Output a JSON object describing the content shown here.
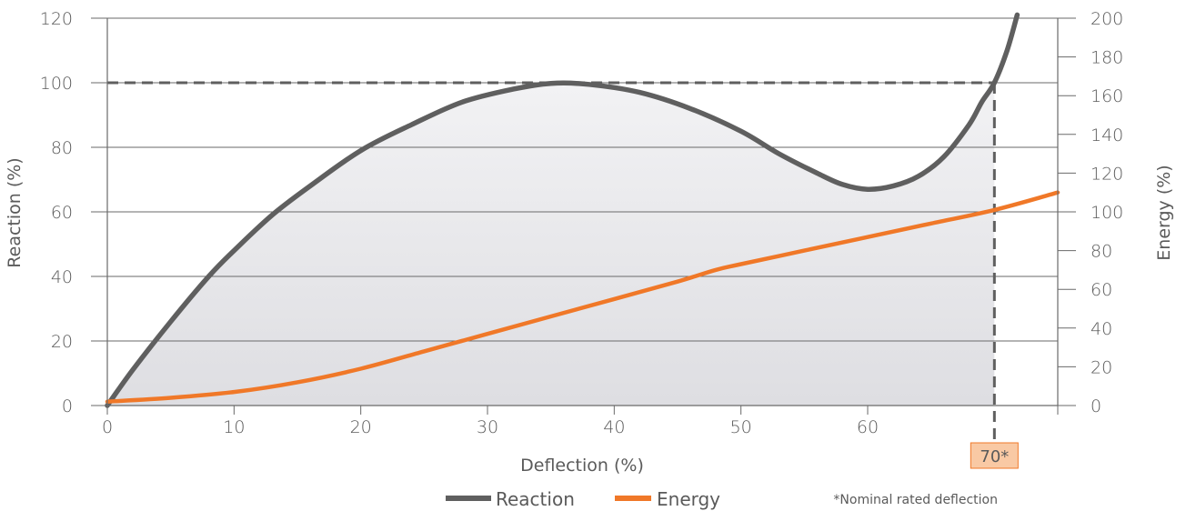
{
  "chart_data": {
    "type": "line",
    "xlabel": "Deflection (%)",
    "ylabel": "Reaction (%)",
    "y2label": "Energy (%)",
    "xlim": [
      0,
      75
    ],
    "ylim": [
      0,
      120
    ],
    "y2lim": [
      0,
      200
    ],
    "x_ticks": [
      0,
      10,
      20,
      30,
      40,
      50,
      60
    ],
    "y_ticks": [
      0,
      20,
      40,
      60,
      80,
      100,
      120
    ],
    "y2_ticks": [
      0,
      20,
      40,
      60,
      80,
      100,
      120,
      140,
      160,
      180,
      200
    ],
    "grid": true,
    "legend_position": "bottom-center",
    "series": [
      {
        "name": "Reaction",
        "color": "#5f5f5f",
        "axis": "left",
        "x": [
          0,
          2,
          5,
          8,
          10,
          13,
          16,
          20,
          24,
          28,
          32,
          35,
          38,
          42,
          46,
          50,
          53,
          56,
          58,
          60,
          62,
          64,
          66,
          68,
          69,
          70,
          71,
          71.8
        ],
        "y": [
          0,
          11,
          26,
          40,
          48,
          59,
          68,
          79,
          87,
          94,
          98,
          99.8,
          99.5,
          97,
          92,
          85,
          78,
          72,
          68.5,
          67,
          68,
          71,
          77,
          87,
          94,
          100,
          110,
          121
        ]
      },
      {
        "name": "Energy",
        "color": "#f07828",
        "axis": "right",
        "x": [
          0,
          5,
          10,
          15,
          20,
          25,
          30,
          35,
          40,
          45,
          48,
          50,
          55,
          60,
          65,
          70,
          75
        ],
        "y": [
          2,
          4,
          7,
          12,
          19,
          28,
          37,
          46,
          55,
          64,
          70,
          73,
          80,
          87,
          94,
          101,
          110
        ]
      }
    ],
    "reference_line": {
      "y": 100,
      "x_end": 70
    },
    "marker": {
      "x": 70,
      "label": "70*",
      "fill": "#f9c9a4",
      "stroke": "#f07828"
    },
    "footnote": "*Nominal rated deflection",
    "area_fill": "#e6e6e8"
  }
}
